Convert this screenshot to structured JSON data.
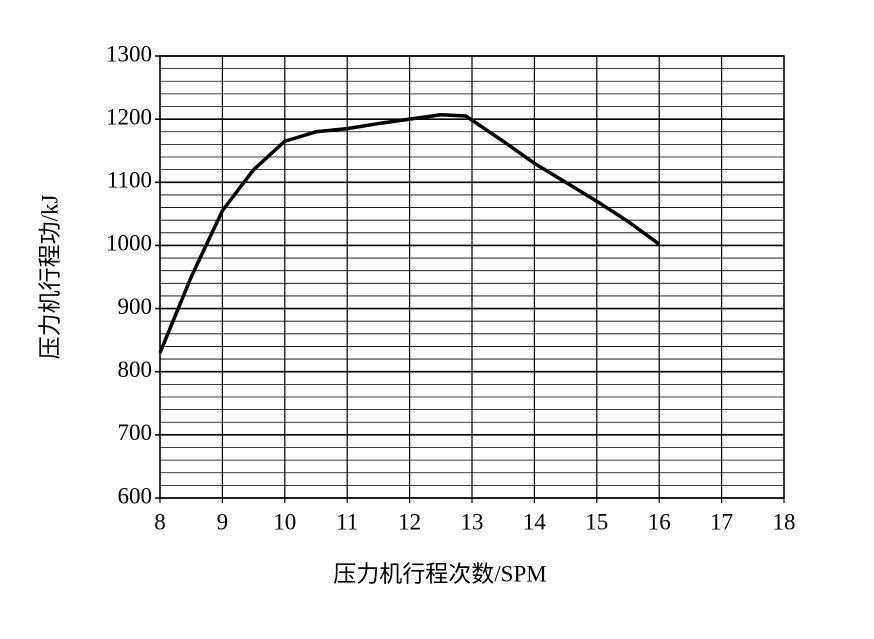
{
  "chart_data": {
    "type": "line",
    "xlabel": "压力机行程次数/SPM",
    "ylabel": "压力机行程功/kJ",
    "x": [
      8,
      8.5,
      9,
      9.5,
      10,
      10.5,
      11,
      11.5,
      12,
      12.5,
      12.9,
      13.5,
      14,
      14.5,
      15,
      15.5,
      16
    ],
    "series": [
      {
        "color": "#000000",
        "values": [
          830,
          950,
          1055,
          1120,
          1165,
          1180,
          1185,
          1193,
          1200,
          1207,
          1205,
          1165,
          1130,
          1100,
          1070,
          1038,
          1002
        ]
      }
    ],
    "xlim": [
      8,
      18
    ],
    "xticks": [
      8,
      9,
      10,
      11,
      12,
      13,
      14,
      15,
      16,
      17,
      18
    ],
    "ylim": [
      600,
      1300
    ],
    "yticks": [
      600,
      700,
      800,
      900,
      1000,
      1100,
      1200,
      1300
    ],
    "yminor": [
      620,
      640,
      660,
      680,
      720,
      740,
      760,
      780,
      820,
      840,
      860,
      880,
      920,
      940,
      960,
      980,
      1020,
      1040,
      1060,
      1080,
      1120,
      1140,
      1160,
      1180,
      1220,
      1240,
      1260,
      1280
    ],
    "grid": true
  }
}
